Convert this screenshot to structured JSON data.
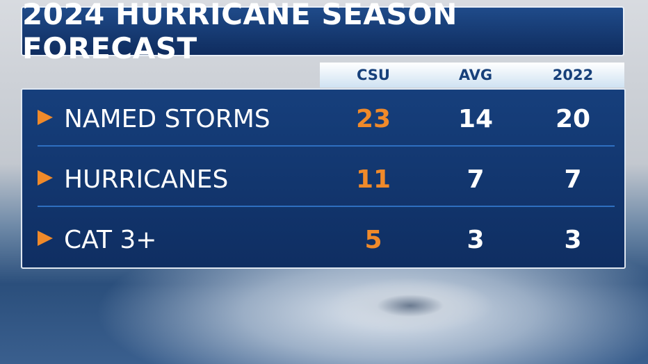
{
  "header": {
    "title": "2024 HURRICANE SEASON FORECAST"
  },
  "table": {
    "columns": [
      "CSU",
      "AVG",
      "2022"
    ],
    "rows": [
      {
        "label": "NAMED STORMS",
        "values": [
          23,
          14,
          20
        ]
      },
      {
        "label": "HURRICANES",
        "values": [
          11,
          7,
          7
        ]
      },
      {
        "label": "CAT 3+",
        "values": [
          5,
          3,
          3
        ]
      }
    ]
  }
}
